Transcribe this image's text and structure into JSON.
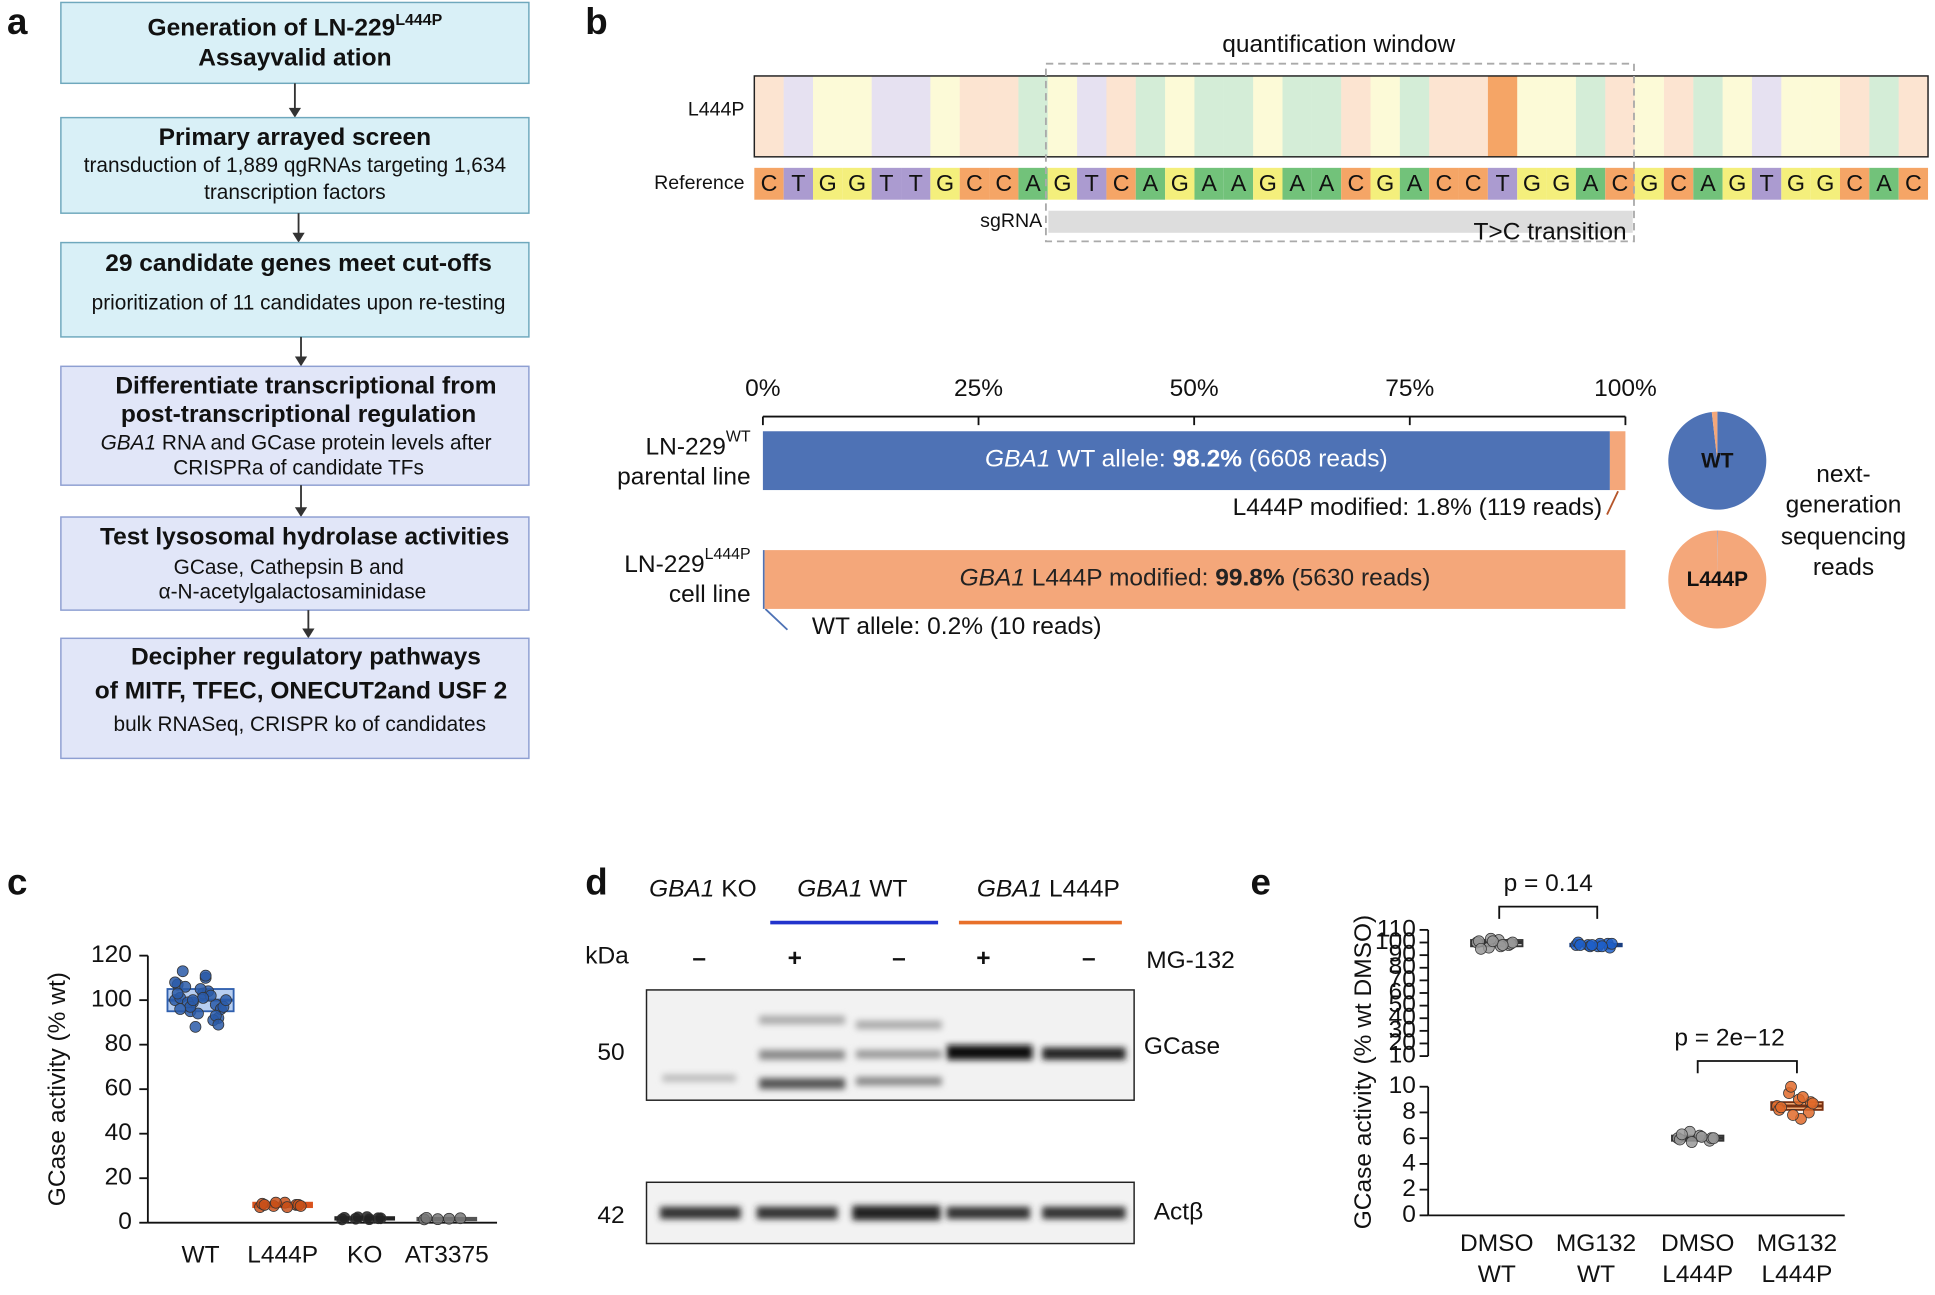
{
  "panel_a": {
    "label": "a",
    "boxes": [
      {
        "title": [
          "Generation of LN-229",
          "Assayvalid ation"
        ],
        "title_sup": "L444P"
      },
      {
        "title": [
          "Primary arrayed screen"
        ],
        "body": [
          "transduction of 1,889 qgRNAs targeting 1,634",
          "transcription factors"
        ]
      },
      {
        "title": [
          "29 candidate genes meet cut-offs"
        ],
        "body": [
          "prioritization of 11 candidates upon re-testing"
        ]
      },
      {
        "title": [
          "Differentiate transcriptional from",
          "post-transcriptional regulation"
        ],
        "body": [
          {
            "italic": "GBA1",
            "text": " RNA  and GCase protein levels after"
          },
          "CRISPRa of candidate TFs"
        ]
      },
      {
        "title": [
          "Test lysosomal hydrolase activities"
        ],
        "body": [
          "GCase, Cathepsin B and",
          "α-N-acetylgalactosaminidase"
        ]
      },
      {
        "title": [
          "Decipher regulatory pathways",
          "of MITF, TFEC, ONECUT2and USF 2"
        ],
        "body": [
          "bulk RNASeq, CRISPR ko of candidates"
        ]
      }
    ]
  },
  "panel_b": {
    "label": "b",
    "window_label": "quantification window",
    "row_labels": [
      "L444P",
      "Reference"
    ],
    "sgrna_label": "sgRNA",
    "transition_label": "T>C transition",
    "sequence": [
      "C",
      "T",
      "G",
      "G",
      "T",
      "T",
      "G",
      "C",
      "C",
      "A",
      "G",
      "T",
      "C",
      "A",
      "G",
      "A",
      "A",
      "G",
      "A",
      "A",
      "C",
      "G",
      "A",
      "C",
      "C",
      "T",
      "G",
      "G",
      "A",
      "C",
      "G",
      "C",
      "A",
      "G",
      "T",
      "G",
      "G",
      "C",
      "A",
      "C"
    ],
    "base_colors": {
      "A": "#72c27a",
      "C": "#f5a566",
      "G": "#f4ef7c",
      "T": "#ab9bd0"
    },
    "edited_position": 25,
    "edited_base": "C",
    "xlim": [
      0,
      100
    ],
    "xticks": [
      {
        "value": 0,
        "label": "0%"
      },
      {
        "value": 25,
        "label": "25%"
      },
      {
        "value": 50,
        "label": "50%"
      },
      {
        "value": 75,
        "label": "75%"
      },
      {
        "value": 100,
        "label": "100%"
      }
    ],
    "rows": [
      {
        "label": "LN-229",
        "sup": "WT",
        "label2": "parental line",
        "pie_label": "WT",
        "segments": [
          {
            "value": 98.2,
            "color": "#4e72b5",
            "text": [
              "GBA1",
              " WT allele: ",
              "98.2%",
              " (6608 reads)"
            ]
          },
          {
            "value": 1.8,
            "color": "#f4a77a",
            "text": "L444P modified: 1.8% (119 reads)"
          }
        ]
      },
      {
        "label": "LN-229",
        "sup": "L444P",
        "label2": "cell line",
        "pie_label": "L444P",
        "segments": [
          {
            "value": 0.2,
            "color": "#4e72b5",
            "text": "WT allele: 0.2% (10 reads)"
          },
          {
            "value": 99.8,
            "color": "#f4a77a",
            "text": [
              "GBA1",
              " L444P modified: ",
              "99.8%",
              " (5630 reads)"
            ]
          }
        ]
      }
    ],
    "side_text": [
      "next-",
      "generation",
      "sequencing",
      "reads"
    ]
  },
  "panel_c": {
    "label": "c",
    "type": "box",
    "ylabel": "GCase activity (% wt)",
    "ylim": [
      0,
      120
    ],
    "yticks": [
      0,
      20,
      40,
      60,
      80,
      100,
      120
    ],
    "categories": [
      "WT",
      "L444P",
      "KO",
      "AT3375"
    ],
    "boxes": [
      {
        "q1": 95,
        "median": 100,
        "q3": 105,
        "fill": "#aac6ee",
        "stroke": "#2f5fae",
        "point_color": "#2a5aa8",
        "points": [
          100,
          98,
          103,
          95,
          107,
          92,
          110,
          99,
          101,
          96,
          104,
          88,
          113,
          97,
          102,
          94,
          106,
          100,
          91,
          105,
          99,
          108,
          93,
          101,
          97,
          103,
          89,
          111,
          100,
          96
        ]
      },
      {
        "q1": 7,
        "median": 8,
        "q3": 9,
        "fill": "#f2a673",
        "stroke": "#d9531e",
        "point_color": "#c8501a",
        "points": [
          7,
          8,
          9,
          7.5,
          8.5,
          8,
          7,
          9,
          8,
          7.5
        ]
      },
      {
        "q1": 1.5,
        "median": 2,
        "q3": 2.5,
        "fill": "#555555",
        "stroke": "#222222",
        "point_color": "#222222",
        "points": [
          1.5,
          2,
          2.5,
          1.8,
          2.2,
          2,
          1.6,
          2.4
        ]
      },
      {
        "q1": 1.2,
        "median": 1.8,
        "q3": 2.2,
        "fill": "#999999",
        "stroke": "#555555",
        "point_color": "#777777",
        "points": [
          1.5,
          2,
          1.8,
          1.6,
          2.2
        ]
      }
    ]
  },
  "panel_d": {
    "label": "d",
    "groups": [
      {
        "italic": "GBA1",
        "text": " KO"
      },
      {
        "italic": "GBA1",
        "text": " WT"
      },
      {
        "italic": "GBA1",
        "text": " L444P"
      }
    ],
    "kda_label": "kDa",
    "treatment": "MG-132",
    "signs": [
      "–",
      "+",
      "–",
      "+",
      "–"
    ],
    "markers": [
      {
        "kda": 50,
        "protein": "GCase"
      },
      {
        "kda": 42,
        "protein": "Actβ"
      }
    ]
  },
  "panel_e": {
    "label": "e",
    "type": "box",
    "ylabel": "GCase activity (% wt DMSO)",
    "categories": [
      [
        "DMSO",
        "WT"
      ],
      [
        "MG132",
        "WT"
      ],
      [
        "DMSO",
        "L444P"
      ],
      [
        "MG132",
        "L444P"
      ]
    ],
    "axes": [
      {
        "ylim": [
          10,
          110
        ],
        "yticks": [
          10,
          20,
          30,
          40,
          50,
          60,
          70,
          80,
          90,
          100,
          110
        ],
        "p_label": "p = 0.14",
        "boxes": [
          {
            "q1": 97,
            "median": 100,
            "q3": 102,
            "fill": "#bbbbbb",
            "stroke": "#333333",
            "point_color": "#999999",
            "points": [
              100,
              98,
              102,
              96,
              101,
              99,
              97,
              103,
              95,
              100,
              98,
              101
            ]
          },
          {
            "q1": 97,
            "median": 98,
            "q3": 99,
            "fill": "#7da4e0",
            "stroke": "#1a3f80",
            "point_color": "#1f5fc8",
            "points": [
              98,
              99,
              97,
              98,
              100,
              96,
              99,
              97,
              98,
              99,
              97,
              98
            ]
          }
        ]
      },
      {
        "ylim": [
          0,
          10
        ],
        "yticks": [
          0,
          2,
          4,
          6,
          8,
          10
        ],
        "p_label": "p = 2e−12",
        "boxes": [
          {
            "q1": 5.8,
            "median": 6,
            "q3": 6.2,
            "fill": "#bbbbbb",
            "stroke": "#333333",
            "point_color": "#999999",
            "points": [
              6,
              5.8,
              6.2,
              6.5,
              5.9,
              6,
              6.1,
              5.7,
              6.3,
              6
            ]
          },
          {
            "q1": 8.2,
            "median": 8.5,
            "q3": 8.8,
            "fill": "#f5a060",
            "stroke": "#7a3010",
            "point_color": "#e06a2a",
            "points": [
              8.5,
              8,
              9,
              9.5,
              8.2,
              8.8,
              7.5,
              10,
              8.4,
              8.7,
              9.2,
              7.8
            ]
          }
        ]
      }
    ]
  }
}
